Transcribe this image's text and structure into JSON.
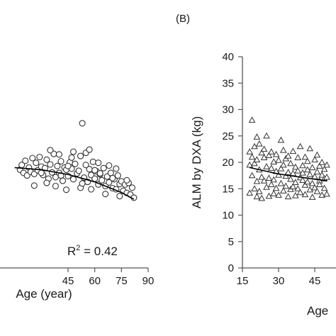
{
  "chart_data": [
    {
      "type": "scatter",
      "xlabel": "Age (year)",
      "x_ticks": [
        "45",
        "60",
        "75",
        "90"
      ],
      "xlim": [
        15,
        90
      ],
      "r2_label": "R",
      "r2_sup": "2",
      "r2_value": " = 0.42",
      "marker": "circle",
      "trend": [
        [
          15,
          19.0
        ],
        [
          30,
          18.6
        ],
        [
          45,
          17.7
        ],
        [
          60,
          16.3
        ],
        [
          75,
          14.3
        ],
        [
          82,
          13.0
        ]
      ],
      "points": [
        [
          18,
          18.6
        ],
        [
          19,
          19.5
        ],
        [
          20,
          18.0
        ],
        [
          21,
          20.3
        ],
        [
          22,
          17.5
        ],
        [
          23,
          19.0
        ],
        [
          24,
          18.2
        ],
        [
          25,
          20.8
        ],
        [
          26,
          17.8
        ],
        [
          27,
          19.9
        ],
        [
          28,
          18.5
        ],
        [
          29,
          21.0
        ],
        [
          30,
          19.2
        ],
        [
          31,
          17.6
        ],
        [
          32,
          18.9
        ],
        [
          33,
          20.5
        ],
        [
          34,
          16.9
        ],
        [
          35,
          19.6
        ],
        [
          36,
          18.1
        ],
        [
          37,
          21.6
        ],
        [
          38,
          17.2
        ],
        [
          39,
          19.3
        ],
        [
          40,
          18.0
        ],
        [
          41,
          20.2
        ],
        [
          42,
          16.5
        ],
        [
          43,
          19.0
        ],
        [
          44,
          18.6
        ],
        [
          45,
          17.4
        ],
        [
          46,
          20.0
        ],
        [
          47,
          18.8
        ],
        [
          48,
          16.8
        ],
        [
          49,
          19.7
        ],
        [
          50,
          17.9
        ],
        [
          51,
          18.4
        ],
        [
          52,
          21.2
        ],
        [
          53,
          27.4
        ],
        [
          54,
          17.1
        ],
        [
          55,
          19.5
        ],
        [
          56,
          16.3
        ],
        [
          57,
          18.7
        ],
        [
          58,
          17.6
        ],
        [
          59,
          20.1
        ],
        [
          60,
          16.9
        ],
        [
          61,
          18.3
        ],
        [
          62,
          15.8
        ],
        [
          63,
          17.7
        ],
        [
          64,
          16.6
        ],
        [
          65,
          18.9
        ],
        [
          66,
          15.5
        ],
        [
          67,
          17.3
        ],
        [
          68,
          16.2
        ],
        [
          69,
          18.0
        ],
        [
          70,
          15.1
        ],
        [
          71,
          16.8
        ],
        [
          72,
          14.9
        ],
        [
          73,
          17.5
        ],
        [
          74,
          15.9
        ],
        [
          75,
          16.4
        ],
        [
          76,
          14.6
        ],
        [
          77,
          15.8
        ],
        [
          78,
          14.2
        ],
        [
          79,
          16.1
        ],
        [
          80,
          13.9
        ],
        [
          81,
          15.2
        ],
        [
          82,
          13.3
        ],
        [
          26,
          15.6
        ],
        [
          33,
          16.1
        ],
        [
          40,
          21.5
        ],
        [
          48,
          22.0
        ],
        [
          55,
          21.8
        ],
        [
          62,
          19.9
        ],
        [
          68,
          19.4
        ],
        [
          72,
          18.8
        ],
        [
          44,
          14.8
        ],
        [
          38,
          15.5
        ],
        [
          58,
          14.9
        ],
        [
          66,
          14.0
        ],
        [
          74,
          13.6
        ],
        [
          52,
          15.2
        ],
        [
          35,
          22.3
        ],
        [
          47,
          20.9
        ],
        [
          57,
          22.4
        ],
        [
          63,
          17.9
        ],
        [
          70,
          17.0
        ],
        [
          78,
          16.6
        ],
        [
          53,
          16.0
        ],
        [
          45,
          19.3
        ],
        [
          41,
          17.5
        ],
        [
          30,
          18.0
        ],
        [
          60,
          18.5
        ]
      ]
    },
    {
      "type": "scatter",
      "panel_label": "(B)",
      "ylabel": "ALM by DXA (kg)",
      "xlabel": "Age",
      "y_ticks": [
        "0",
        "5",
        "10",
        "15",
        "20",
        "25",
        "30",
        "35",
        "40"
      ],
      "x_ticks": [
        "15",
        "30",
        "45"
      ],
      "ylim": [
        0,
        40
      ],
      "xlim": [
        15,
        90
      ],
      "marker": "triangle",
      "trend": [
        [
          18,
          19.0
        ],
        [
          30,
          17.8
        ],
        [
          45,
          16.8
        ],
        [
          50,
          16.5
        ]
      ],
      "points": [
        [
          18,
          22.0
        ],
        [
          18,
          19.5
        ],
        [
          18,
          14.2
        ],
        [
          19,
          28.0
        ],
        [
          19,
          21.0
        ],
        [
          19,
          17.5
        ],
        [
          20,
          23.0
        ],
        [
          20,
          19.8
        ],
        [
          20,
          15.0
        ],
        [
          21,
          24.8
        ],
        [
          21,
          20.5
        ],
        [
          21,
          16.4
        ],
        [
          22,
          23.5
        ],
        [
          22,
          18.6
        ],
        [
          22,
          14.5
        ],
        [
          23,
          21.8
        ],
        [
          23,
          17.2
        ],
        [
          23,
          13.2
        ],
        [
          24,
          20.9
        ],
        [
          24,
          16.5
        ],
        [
          24,
          22.5
        ],
        [
          25,
          19.2
        ],
        [
          25,
          15.3
        ],
        [
          26,
          21.3
        ],
        [
          26,
          17.0
        ],
        [
          26,
          13.6
        ],
        [
          27,
          18.9
        ],
        [
          27,
          15.8
        ],
        [
          27,
          22.0
        ],
        [
          28,
          20.1
        ],
        [
          28,
          16.7
        ],
        [
          28,
          14.1
        ],
        [
          29,
          18.3
        ],
        [
          29,
          21.5
        ],
        [
          29,
          15.1
        ],
        [
          30,
          17.6
        ],
        [
          30,
          20.4
        ],
        [
          30,
          13.8
        ],
        [
          31,
          24.2
        ],
        [
          31,
          18.8
        ],
        [
          31,
          16.0
        ],
        [
          32,
          19.5
        ],
        [
          32,
          14.6
        ],
        [
          32,
          22.3
        ],
        [
          33,
          17.4
        ],
        [
          33,
          20.7
        ],
        [
          33,
          15.5
        ],
        [
          34,
          18.1
        ],
        [
          34,
          13.5
        ],
        [
          34,
          21.2
        ],
        [
          35,
          16.8
        ],
        [
          35,
          19.8
        ],
        [
          35,
          14.9
        ],
        [
          36,
          17.9
        ],
        [
          36,
          22.1
        ],
        [
          36,
          15.4
        ],
        [
          37,
          19.1
        ],
        [
          37,
          16.2
        ],
        [
          37,
          13.7
        ],
        [
          38,
          18.4
        ],
        [
          38,
          20.9
        ],
        [
          38,
          15.0
        ],
        [
          39,
          17.1
        ],
        [
          39,
          23.0
        ],
        [
          39,
          14.3
        ],
        [
          40,
          16.6
        ],
        [
          40,
          19.4
        ],
        [
          40,
          18.0
        ],
        [
          41,
          15.7
        ],
        [
          41,
          21.0
        ],
        [
          41,
          13.9
        ],
        [
          42,
          18.6
        ],
        [
          42,
          16.3
        ],
        [
          42,
          20.2
        ],
        [
          43,
          14.8
        ],
        [
          43,
          17.7
        ],
        [
          43,
          22.6
        ],
        [
          44,
          16.0
        ],
        [
          44,
          19.0
        ],
        [
          44,
          13.4
        ],
        [
          45,
          17.3
        ],
        [
          45,
          20.5
        ],
        [
          45,
          15.2
        ],
        [
          46,
          18.2
        ],
        [
          46,
          14.5
        ],
        [
          46,
          21.4
        ],
        [
          47,
          16.5
        ],
        [
          47,
          19.3
        ],
        [
          47,
          15.8
        ],
        [
          48,
          17.6
        ],
        [
          48,
          13.8
        ],
        [
          48,
          20.0
        ],
        [
          49,
          15.1
        ],
        [
          49,
          18.7
        ],
        [
          49,
          16.9
        ],
        [
          50,
          17.2
        ],
        [
          50,
          14.0
        ],
        [
          50,
          19.5
        ],
        [
          25,
          25.0
        ],
        [
          21,
          13.5
        ]
      ]
    }
  ]
}
